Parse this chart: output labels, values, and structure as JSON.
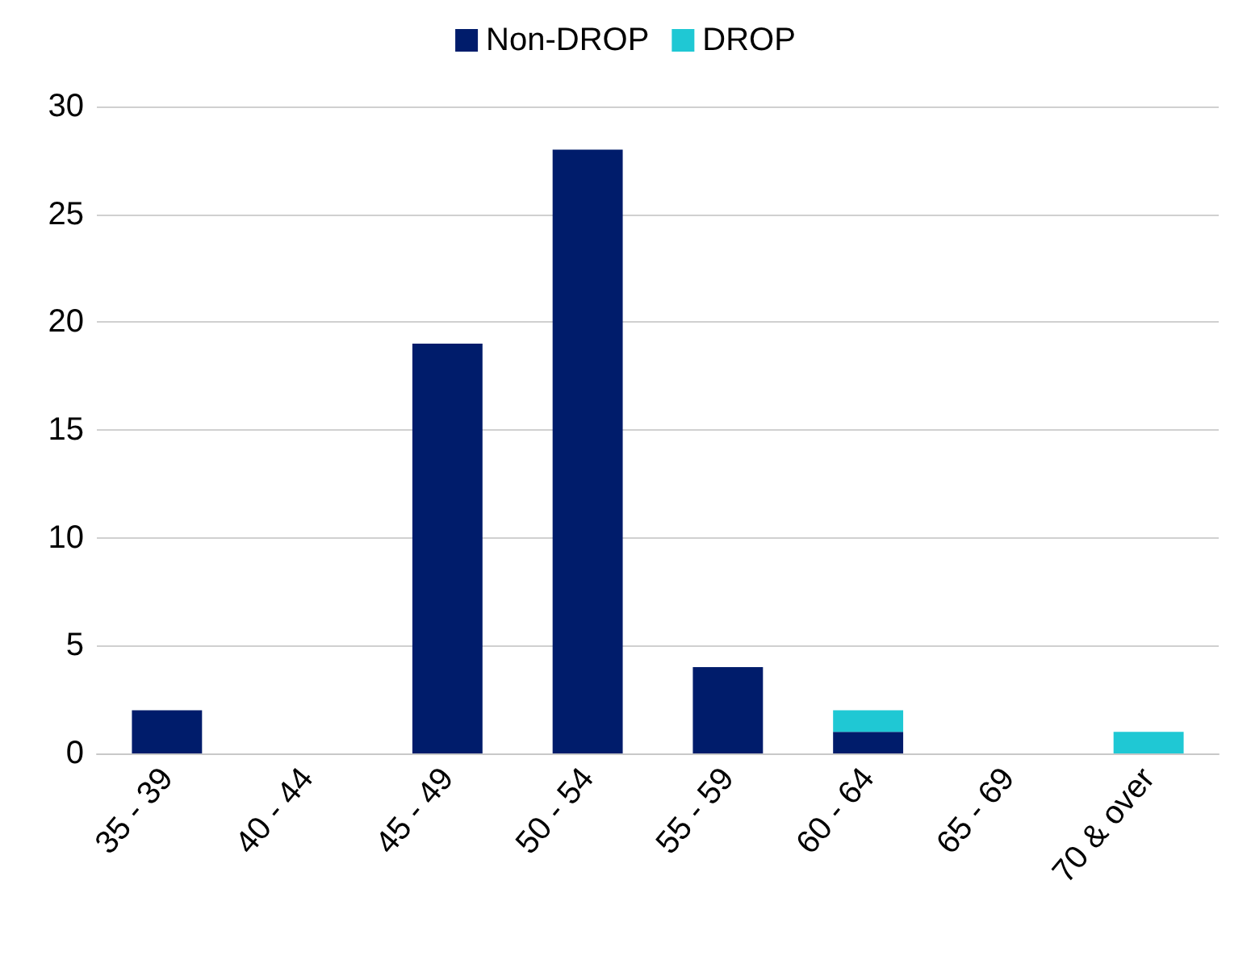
{
  "chart_data": {
    "type": "bar",
    "stacked": true,
    "categories": [
      "35 - 39",
      "40 - 44",
      "45 - 49",
      "50 - 54",
      "55 - 59",
      "60 - 64",
      "65 - 69",
      "70 & over"
    ],
    "series": [
      {
        "name": "Non-DROP",
        "color": "#001c6b",
        "values": [
          2,
          0,
          19,
          28,
          4,
          1,
          0,
          0
        ]
      },
      {
        "name": "DROP",
        "color": "#1fc8d4",
        "values": [
          0,
          0,
          0,
          0,
          0,
          1,
          0,
          1
        ]
      }
    ],
    "ylim": [
      0,
      30
    ],
    "yticks": [
      0,
      5,
      10,
      15,
      20,
      25,
      30
    ],
    "grid": "y",
    "legend": "top"
  }
}
